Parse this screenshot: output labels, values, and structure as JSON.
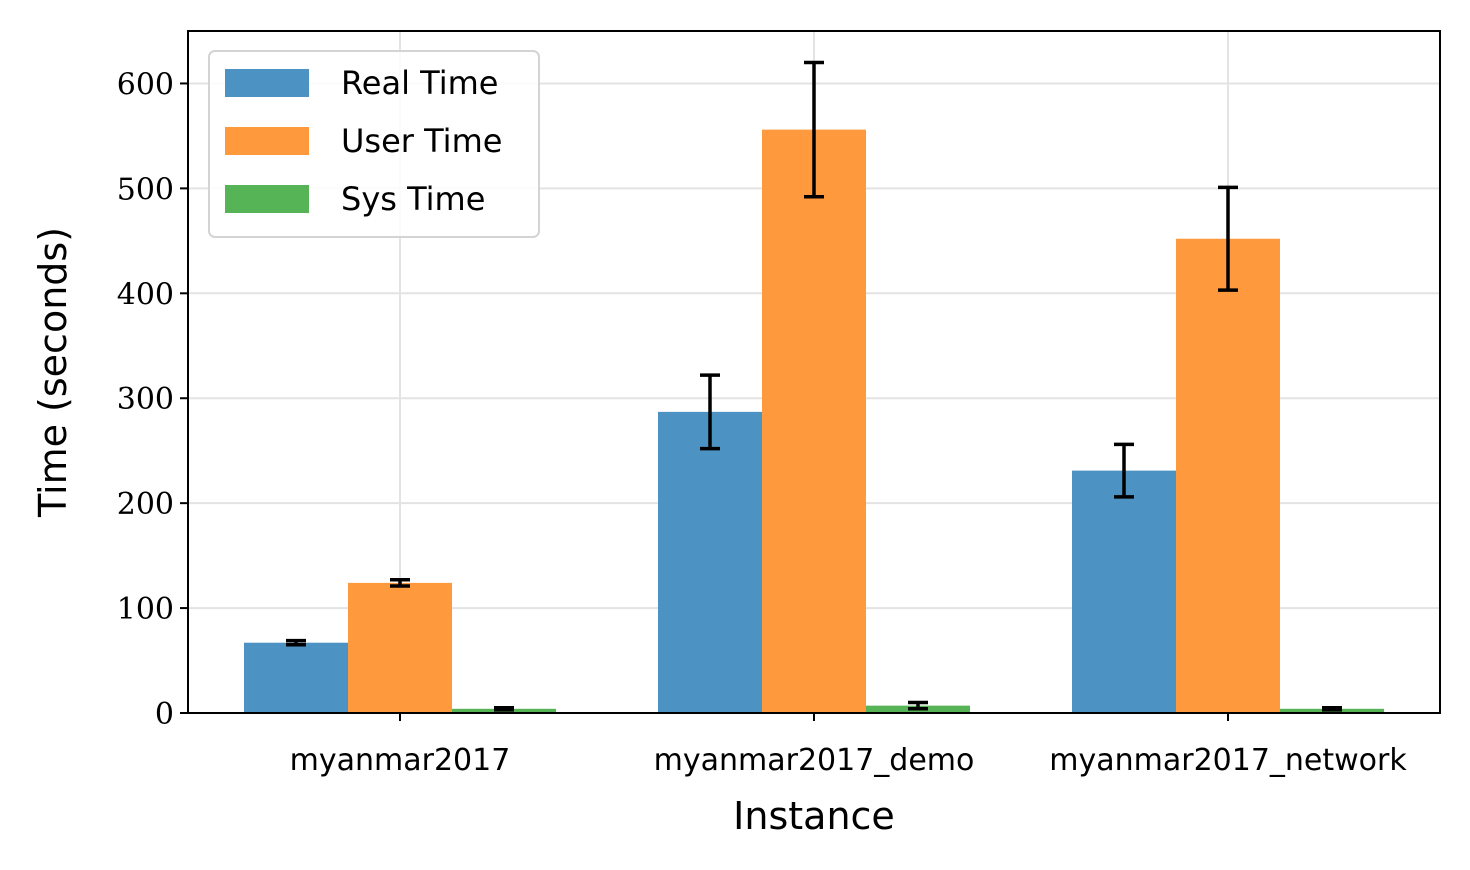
{
  "chart_data": {
    "type": "bar",
    "xlabel": "Instance",
    "ylabel": "Time (seconds)",
    "categories": [
      "myanmar2017",
      "myanmar2017_demo",
      "myanmar2017_network"
    ],
    "ylim": [
      0,
      650
    ],
    "yticks": [
      0,
      100,
      200,
      300,
      400,
      500,
      600
    ],
    "grid": true,
    "legend_position": "top-left",
    "series": [
      {
        "name": "Real Time",
        "color": "#4c92c3",
        "values": [
          67,
          287,
          231
        ],
        "errors": [
          2,
          35,
          25
        ]
      },
      {
        "name": "User Time",
        "color": "#ff993e",
        "values": [
          124,
          556,
          452
        ],
        "errors": [
          3,
          64,
          49
        ]
      },
      {
        "name": "Sys Time",
        "color": "#56b356",
        "values": [
          4,
          7,
          4
        ],
        "errors": [
          1,
          3,
          1
        ]
      }
    ]
  }
}
